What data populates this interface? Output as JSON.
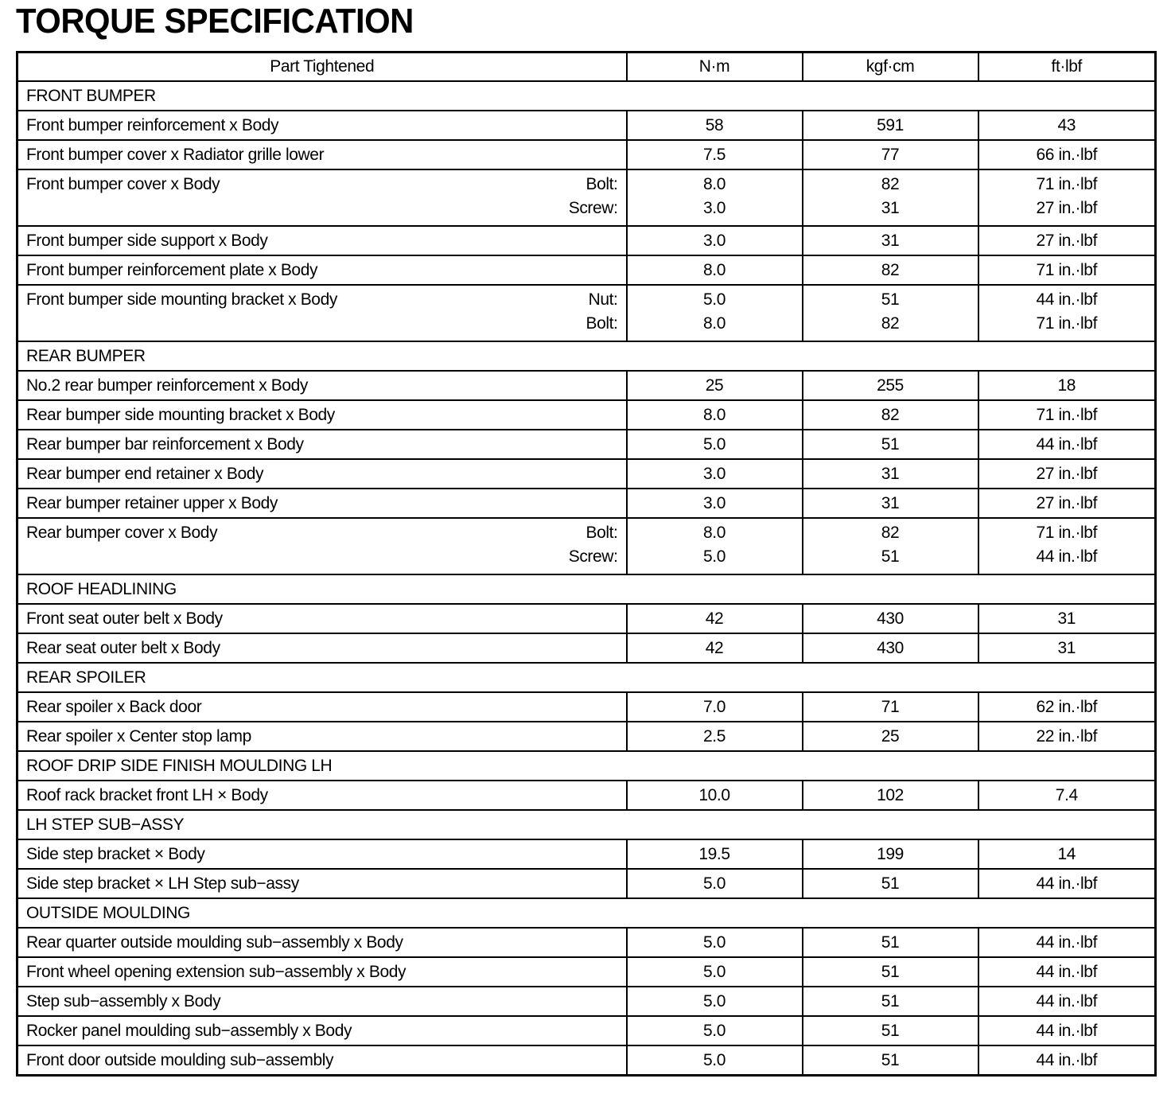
{
  "title": "TORQUE SPECIFICATION",
  "headers": {
    "part": "Part Tightened",
    "nm": "N·m",
    "kgf": "kgf·cm",
    "ftlbf": "ft·lbf"
  },
  "sections": [
    {
      "name": "FRONT BUMPER",
      "rows": [
        {
          "part": "Front bumper reinforcement x Body",
          "nm": "58",
          "kgf": "591",
          "ftlbf": "43"
        },
        {
          "part": "Front bumper cover x Radiator grille lower",
          "nm": "7.5",
          "kgf": "77",
          "ftlbf": "66 in.·lbf"
        },
        {
          "part": "Front bumper cover x Body",
          "sub": [
            {
              "label": "Bolt:",
              "nm": "8.0",
              "kgf": "82",
              "ftlbf": "71 in.·lbf"
            },
            {
              "label": "Screw:",
              "nm": "3.0",
              "kgf": "31",
              "ftlbf": "27 in.·lbf"
            }
          ]
        },
        {
          "part": "Front bumper side support x Body",
          "nm": "3.0",
          "kgf": "31",
          "ftlbf": "27 in.·lbf"
        },
        {
          "part": "Front bumper reinforcement plate x Body",
          "nm": "8.0",
          "kgf": "82",
          "ftlbf": "71 in.·lbf"
        },
        {
          "part": "Front bumper side mounting bracket x Body",
          "sub": [
            {
              "label": "Nut:",
              "nm": "5.0",
              "kgf": "51",
              "ftlbf": "44 in.·lbf"
            },
            {
              "label": "Bolt:",
              "nm": "8.0",
              "kgf": "82",
              "ftlbf": "71 in.·lbf"
            }
          ]
        }
      ]
    },
    {
      "name": "REAR BUMPER",
      "rows": [
        {
          "part": "No.2 rear bumper reinforcement x Body",
          "nm": "25",
          "kgf": "255",
          "ftlbf": "18"
        },
        {
          "part": "Rear bumper side mounting bracket x Body",
          "nm": "8.0",
          "kgf": "82",
          "ftlbf": "71 in.·lbf"
        },
        {
          "part": "Rear bumper bar reinforcement x Body",
          "nm": "5.0",
          "kgf": "51",
          "ftlbf": "44 in.·lbf"
        },
        {
          "part": "Rear bumper end retainer x Body",
          "nm": "3.0",
          "kgf": "31",
          "ftlbf": "27 in.·lbf"
        },
        {
          "part": "Rear bumper retainer upper x Body",
          "nm": "3.0",
          "kgf": "31",
          "ftlbf": "27 in.·lbf"
        },
        {
          "part": "Rear bumper cover x Body",
          "sub": [
            {
              "label": "Bolt:",
              "nm": "8.0",
              "kgf": "82",
              "ftlbf": "71 in.·lbf"
            },
            {
              "label": "Screw:",
              "nm": "5.0",
              "kgf": "51",
              "ftlbf": "44 in.·lbf"
            }
          ]
        }
      ]
    },
    {
      "name": "ROOF HEADLINING",
      "rows": [
        {
          "part": "Front seat outer belt x Body",
          "nm": "42",
          "kgf": "430",
          "ftlbf": "31"
        },
        {
          "part": "Rear seat outer belt x Body",
          "nm": "42",
          "kgf": "430",
          "ftlbf": "31"
        }
      ]
    },
    {
      "name": "REAR SPOILER",
      "rows": [
        {
          "part": "Rear spoiler x Back door",
          "nm": "7.0",
          "kgf": "71",
          "ftlbf": "62 in.·lbf"
        },
        {
          "part": "Rear spoiler x Center stop lamp",
          "nm": "2.5",
          "kgf": "25",
          "ftlbf": "22 in.·lbf"
        }
      ]
    },
    {
      "name": "ROOF DRIP SIDE FINISH MOULDING LH",
      "rows": [
        {
          "part": "Roof rack bracket front LH × Body",
          "nm": "10.0",
          "kgf": "102",
          "ftlbf": "7.4"
        }
      ]
    },
    {
      "name": "LH STEP SUB−ASSY",
      "rows": [
        {
          "part": "Side step bracket × Body",
          "nm": "19.5",
          "kgf": "199",
          "ftlbf": "14"
        },
        {
          "part": "Side step bracket × LH Step sub−assy",
          "nm": "5.0",
          "kgf": "51",
          "ftlbf": "44 in.·lbf"
        }
      ]
    },
    {
      "name": "OUTSIDE MOULDING",
      "rows": [
        {
          "part": "Rear quarter outside moulding sub−assembly x Body",
          "nm": "5.0",
          "kgf": "51",
          "ftlbf": "44 in.·lbf"
        },
        {
          "part": "Front wheel opening extension sub−assembly x Body",
          "nm": "5.0",
          "kgf": "51",
          "ftlbf": "44 in.·lbf"
        },
        {
          "part": "Step sub−assembly x Body",
          "nm": "5.0",
          "kgf": "51",
          "ftlbf": "44 in.·lbf"
        },
        {
          "part": "Rocker panel moulding sub−assembly x Body",
          "nm": "5.0",
          "kgf": "51",
          "ftlbf": "44 in.·lbf"
        },
        {
          "part": "Front door outside moulding sub−assembly",
          "nm": "5.0",
          "kgf": "51",
          "ftlbf": "44 in.·lbf"
        }
      ]
    }
  ]
}
